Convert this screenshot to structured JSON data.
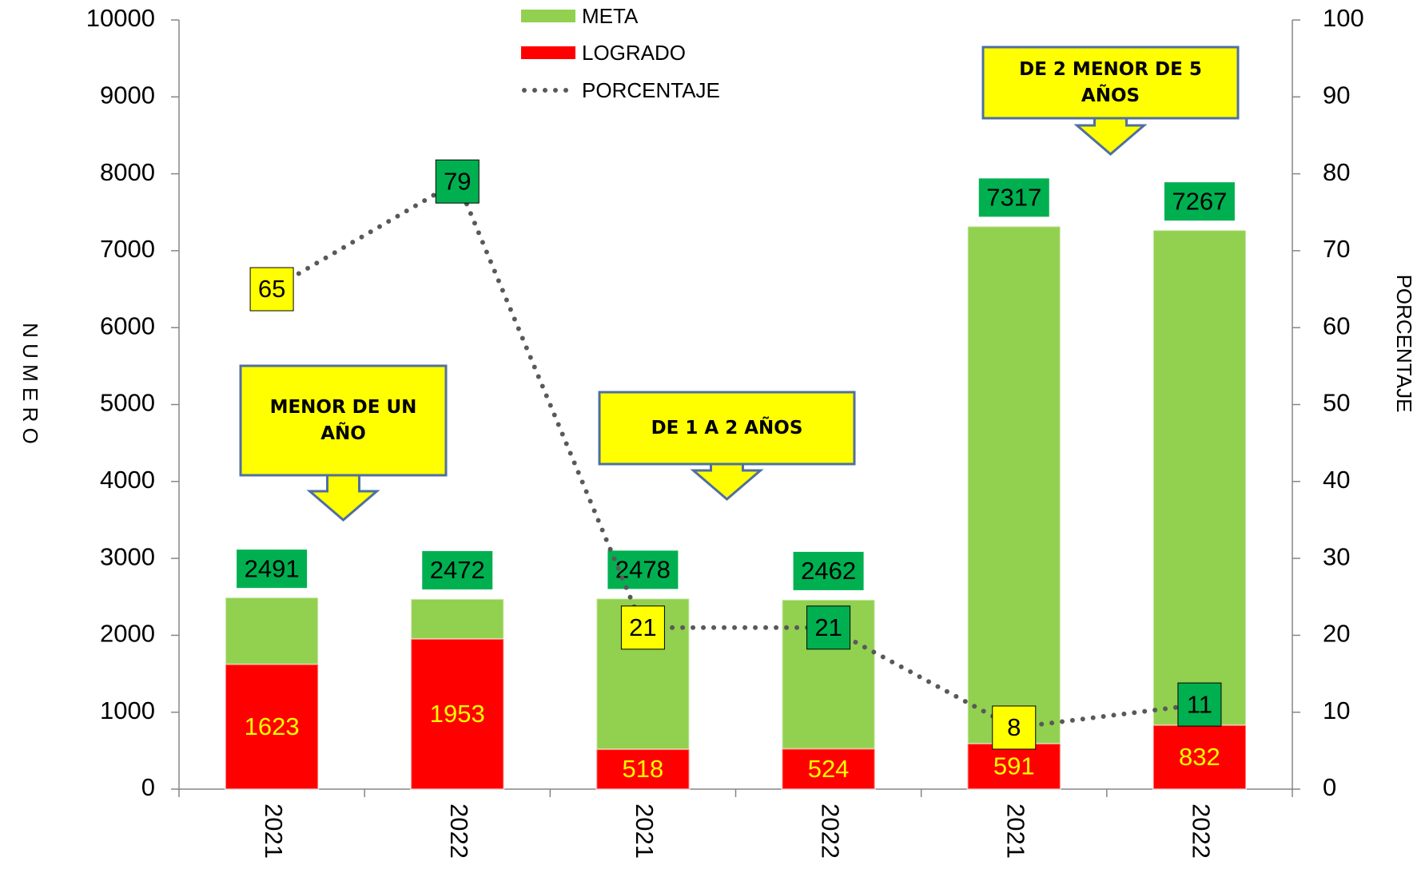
{
  "chart_data": {
    "type": "bar",
    "categories": [
      "2021",
      "2022",
      "2021",
      "2022",
      "2021",
      "2022"
    ],
    "series": [
      {
        "name": "META",
        "color": "#92d050",
        "label_color": "#00b050",
        "values": [
          2491,
          2472,
          2478,
          2462,
          7317,
          7267
        ]
      },
      {
        "name": "LOGRADO",
        "color": "#ff0000",
        "label_color": "#ffff00",
        "values": [
          1623,
          1953,
          518,
          524,
          591,
          832
        ]
      },
      {
        "name": "PORCENTAJE",
        "type": "line",
        "axis": "y2",
        "color": "#595959",
        "label_colors": [
          "#ffff00",
          "#00b050",
          "#ffff00",
          "#00b050",
          "#ffff00",
          "#00b050"
        ],
        "values": [
          65,
          79,
          21,
          21,
          8,
          11
        ]
      }
    ],
    "ylim": [
      0,
      10000
    ],
    "yticks": [
      0,
      1000,
      2000,
      3000,
      4000,
      5000,
      6000,
      7000,
      8000,
      9000,
      10000
    ],
    "y2lim": [
      0,
      100
    ],
    "y2ticks": [
      0,
      10,
      20,
      30,
      40,
      50,
      60,
      70,
      80,
      90,
      100
    ],
    "ylabel": "N U M E R O",
    "y2label": "PORCENTAJE",
    "legend": "top",
    "annotations": [
      {
        "text": "MENOR DE UN AÑO"
      },
      {
        "text": "DE 1 A 2 AÑOS"
      },
      {
        "text": "DE 2 MENOR DE 5 AÑOS"
      }
    ]
  }
}
